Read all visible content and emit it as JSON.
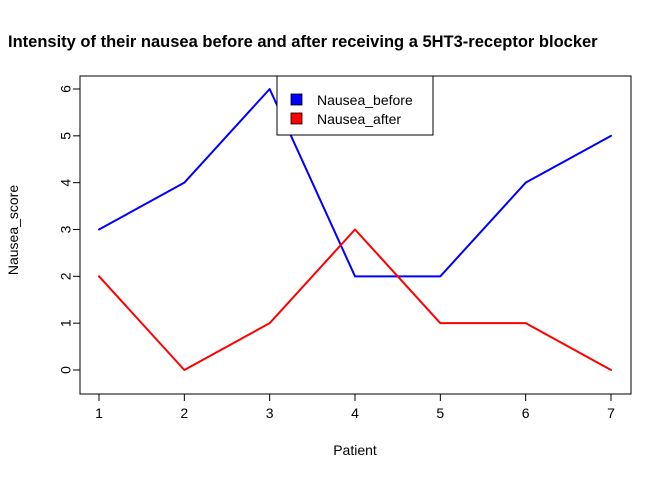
{
  "chart_data": {
    "type": "line",
    "title": "Intensity of their nausea before and after receiving a 5HT3-receptor blocker",
    "xlabel": "Patient",
    "ylabel": "Nausea_score",
    "x": [
      1,
      2,
      3,
      4,
      5,
      6,
      7
    ],
    "xticks": [
      "1",
      "2",
      "3",
      "4",
      "5",
      "6",
      "7"
    ],
    "yticks": [
      "0",
      "1",
      "2",
      "3",
      "4",
      "5",
      "6"
    ],
    "xlim": [
      1,
      7
    ],
    "ylim": [
      0,
      6
    ],
    "grid": false,
    "legend_position": "top-center",
    "series": [
      {
        "name": "Nausea_before",
        "color": "#0000ff",
        "values": [
          3,
          4,
          6,
          2,
          2,
          4,
          5
        ]
      },
      {
        "name": "Nausea_after",
        "color": "#ff0000",
        "values": [
          2,
          0,
          1,
          3,
          1,
          1,
          0
        ]
      }
    ]
  }
}
